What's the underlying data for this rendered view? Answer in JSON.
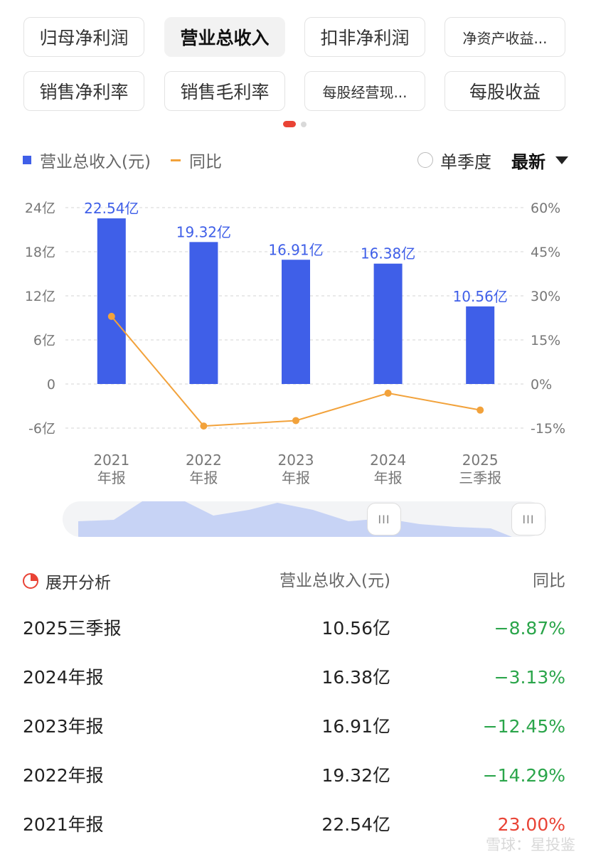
{
  "tabs": [
    {
      "label": "归母净利润",
      "active": false,
      "small": false
    },
    {
      "label": "营业总收入",
      "active": true,
      "small": false
    },
    {
      "label": "扣非净利润",
      "active": false,
      "small": false
    },
    {
      "label": "净资产收益...",
      "active": false,
      "small": true
    },
    {
      "label": "销售净利率",
      "active": false,
      "small": false
    },
    {
      "label": "销售毛利率",
      "active": false,
      "small": false
    },
    {
      "label": "每股经营现...",
      "active": false,
      "small": true
    },
    {
      "label": "每股收益",
      "active": false,
      "small": false
    }
  ],
  "legend": {
    "bar_label": "营业总收入(元)",
    "line_label": "同比"
  },
  "options": {
    "single_quarter": "单季度",
    "latest": "最新"
  },
  "colors": {
    "bar": "#3f5fe8",
    "line": "#f2a23b",
    "negative": "#2aa54a",
    "positive": "#e94335"
  },
  "chart_data": {
    "type": "bar",
    "categories": [
      [
        "2021",
        "年报"
      ],
      [
        "2022",
        "年报"
      ],
      [
        "2023",
        "年报"
      ],
      [
        "2024",
        "年报"
      ],
      [
        "2025",
        "三季报"
      ]
    ],
    "series": [
      {
        "name": "营业总收入(元)",
        "type": "bar",
        "values": [
          22.54,
          19.32,
          16.91,
          16.38,
          10.56
        ],
        "labels": [
          "22.54亿",
          "19.32亿",
          "16.91亿",
          "16.38亿",
          "10.56亿"
        ]
      },
      {
        "name": "同比",
        "type": "line",
        "values": [
          23.0,
          -14.29,
          -12.45,
          -3.13,
          -8.87
        ]
      }
    ],
    "y_left": {
      "ticks": [
        24,
        18,
        12,
        6,
        0,
        -6
      ],
      "tick_labels": [
        "24亿",
        "18亿",
        "12亿",
        "6亿",
        "0",
        "-6亿"
      ],
      "ylim": [
        -6,
        24
      ]
    },
    "y_right": {
      "ticks": [
        60,
        45,
        30,
        15,
        0,
        -15
      ],
      "tick_labels": [
        "60%",
        "45%",
        "30%",
        "15%",
        "0%",
        "-15%"
      ],
      "ylim": [
        -15,
        60
      ]
    },
    "grid": true
  },
  "table": {
    "expand_label": "展开分析",
    "col_revenue": "营业总收入(元)",
    "col_yoy": "同比",
    "rows": [
      {
        "period": "2025三季报",
        "revenue": "10.56亿",
        "yoy": "−8.87%",
        "positive": false
      },
      {
        "period": "2024年报",
        "revenue": "16.38亿",
        "yoy": "−3.13%",
        "positive": false
      },
      {
        "period": "2023年报",
        "revenue": "16.91亿",
        "yoy": "−12.45%",
        "positive": false
      },
      {
        "period": "2022年报",
        "revenue": "19.32亿",
        "yoy": "−14.29%",
        "positive": false
      },
      {
        "period": "2021年报",
        "revenue": "22.54亿",
        "yoy": "23.00%",
        "positive": true
      }
    ]
  },
  "watermark": "雪球：星投鉴",
  "slider": {
    "handle_glyph": "III"
  }
}
